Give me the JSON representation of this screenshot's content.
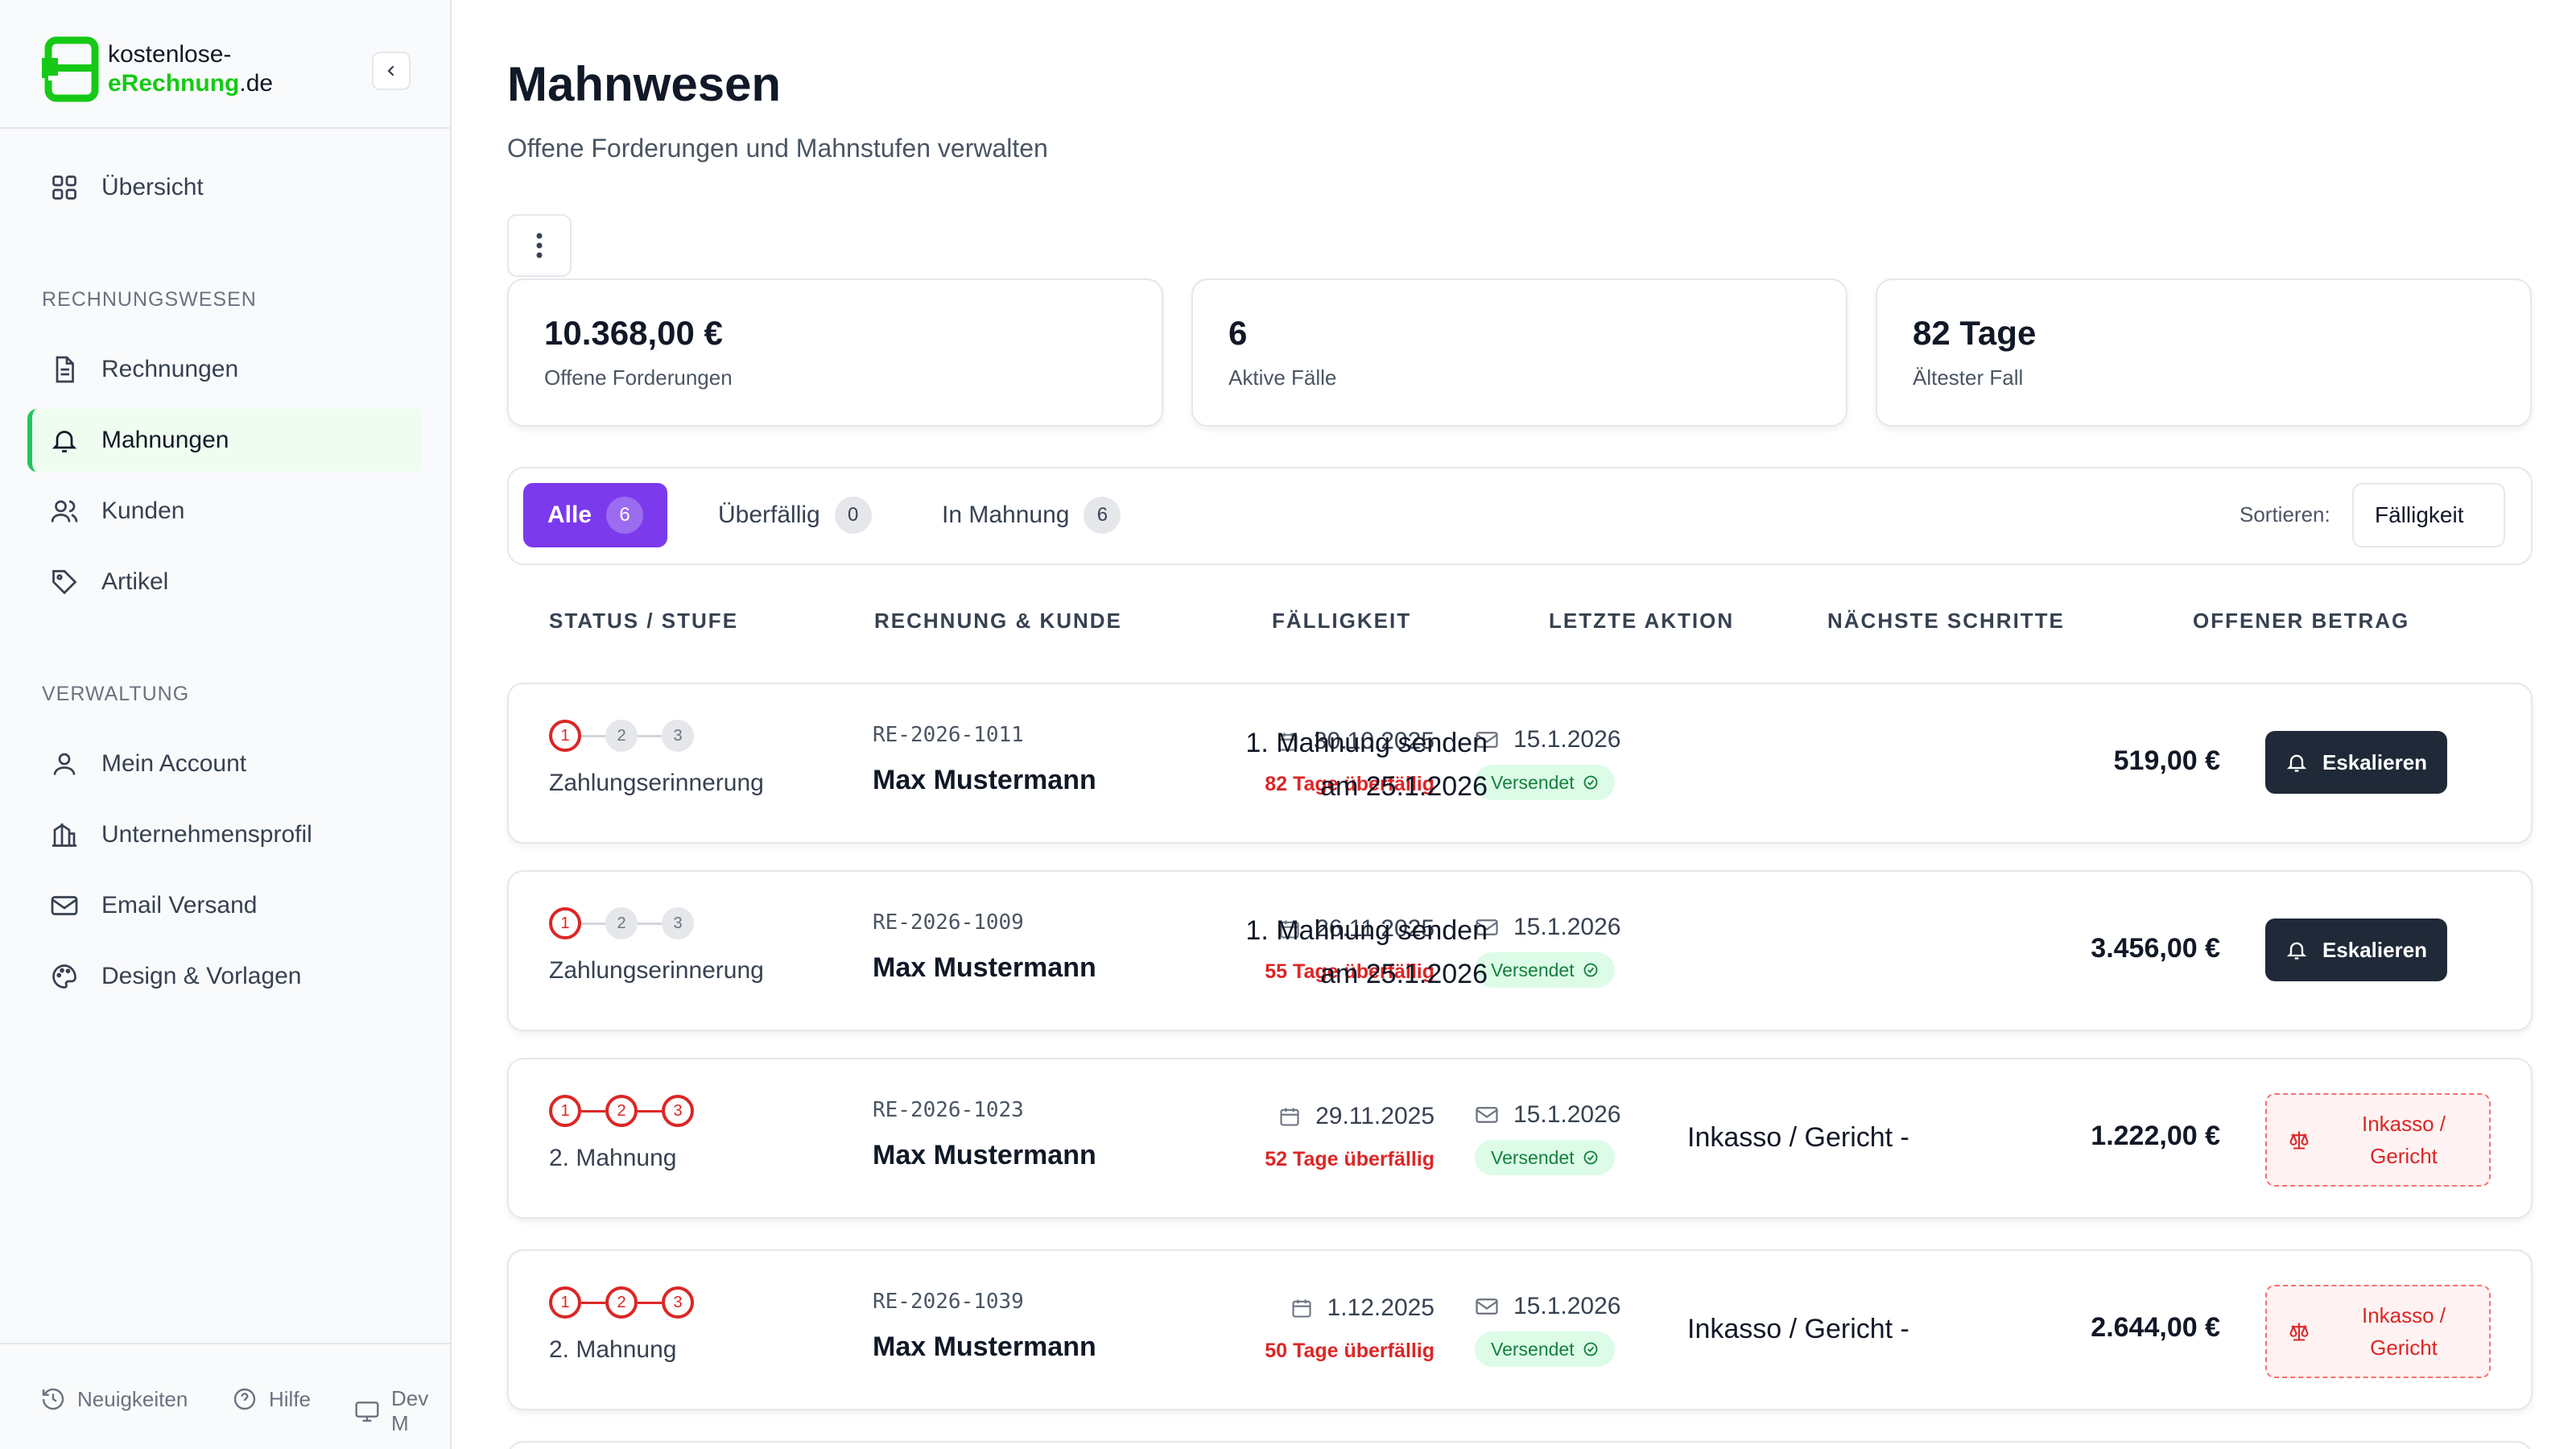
{
  "brand": {
    "line1": "kostenlose-",
    "line2_main": "eRechnung",
    "line2_tld": ".de",
    "accent": "#22c55e"
  },
  "sidebar": {
    "overview": "Übersicht",
    "section_billing": "RECHNUNGSWESEN",
    "items_billing": [
      {
        "label": "Rechnungen",
        "icon": "document-icon"
      },
      {
        "label": "Mahnungen",
        "icon": "bell-icon",
        "active": true
      },
      {
        "label": "Kunden",
        "icon": "users-icon"
      },
      {
        "label": "Artikel",
        "icon": "tag-icon"
      }
    ],
    "section_admin": "VERWALTUNG",
    "items_admin": [
      {
        "label": "Mein Account",
        "icon": "user-icon"
      },
      {
        "label": "Unternehmensprofil",
        "icon": "building-icon"
      },
      {
        "label": "Email Versand",
        "icon": "mail-icon"
      },
      {
        "label": "Design & Vorlagen",
        "icon": "palette-icon"
      }
    ],
    "footer": {
      "news": "Neuigkeiten",
      "help": "Hilfe",
      "dev": "Dev M"
    }
  },
  "page": {
    "title": "Mahnwesen",
    "subtitle": "Offene Forderungen und Mahnstufen verwalten"
  },
  "stats": [
    {
      "value": "10.368,00 €",
      "label": "Offene Forderungen"
    },
    {
      "value": "6",
      "label": "Aktive Fälle"
    },
    {
      "value": "82 Tage",
      "label": "Ältester Fall"
    }
  ],
  "tabs": [
    {
      "label": "Alle",
      "count": "6",
      "active": true
    },
    {
      "label": "Überfällig",
      "count": "0"
    },
    {
      "label": "In Mahnung",
      "count": "6"
    }
  ],
  "sort": {
    "label": "Sortieren:",
    "value": "Fälligkeit"
  },
  "columns": [
    "STATUS / STUFE",
    "RECHNUNG & KUNDE",
    "FÄLLIGKEIT",
    "LETZTE AKTION",
    "NÄCHSTE SCHRITTE",
    "OFFENER BETRAG"
  ],
  "rows": [
    {
      "stage": "Zahlungserinnerung",
      "level": 1,
      "invoice": "RE-2026-1011",
      "customer": "Max Mustermann",
      "due": "30.10.2025",
      "overdue": "82 Tage überfällig",
      "last_date": "15.1.2026",
      "last_status": "Versendet",
      "next1": "1. Mahnung senden",
      "next2": "am 25.1.2026",
      "amount": "519,00 €",
      "action": "Eskalieren"
    },
    {
      "stage": "Zahlungserinnerung",
      "level": 1,
      "invoice": "RE-2026-1009",
      "customer": "Max Mustermann",
      "due": "26.11.2025",
      "overdue": "55 Tage überfällig",
      "last_date": "15.1.2026",
      "last_status": "Versendet",
      "next1": "1. Mahnung senden",
      "next2": "am 25.1.2026",
      "amount": "3.456,00 €",
      "action": "Eskalieren"
    },
    {
      "stage": "2. Mahnung",
      "level": 3,
      "invoice": "RE-2026-1023",
      "customer": "Max Mustermann",
      "due": "29.11.2025",
      "overdue": "52 Tage überfällig",
      "last_date": "15.1.2026",
      "last_status": "Versendet",
      "next1": "Inkasso / Gericht -",
      "amount": "1.222,00 €",
      "action1": "Inkasso /",
      "action2": "Gericht"
    },
    {
      "stage": "2. Mahnung",
      "level": 3,
      "invoice": "RE-2026-1039",
      "customer": "Max Mustermann",
      "due": "1.12.2025",
      "overdue": "50 Tage überfällig",
      "last_date": "15.1.2026",
      "last_status": "Versendet",
      "next1": "Inkasso / Gericht -",
      "amount": "2.644,00 €",
      "action1": "Inkasso /",
      "action2": "Gericht"
    }
  ],
  "step_numbers": [
    "1",
    "2",
    "3"
  ]
}
